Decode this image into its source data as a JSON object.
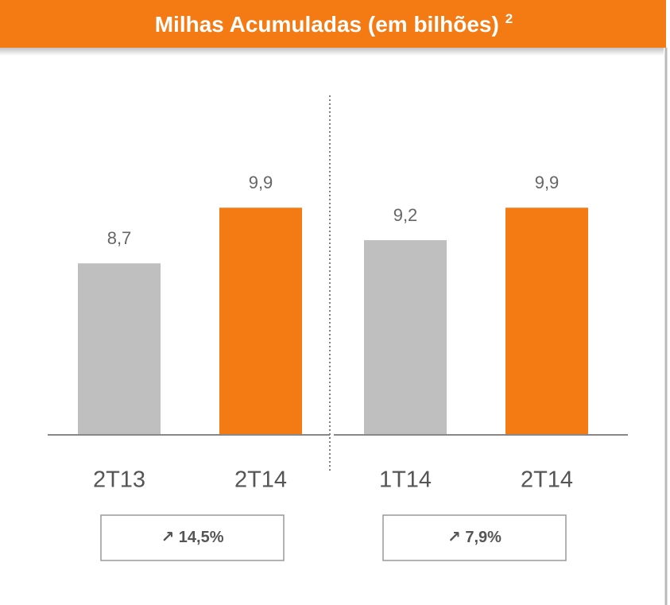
{
  "header": {
    "title": "Milhas Acumuladas (em bilhões)",
    "footnote": "2"
  },
  "chart_data": [
    {
      "type": "bar",
      "categories": [
        "2T13",
        "2T14"
      ],
      "values": [
        8.7,
        9.9
      ],
      "value_labels": [
        "8,7",
        "9,9"
      ],
      "colors": [
        "#bfbfbf",
        "#f47a14"
      ],
      "ylim": [
        5,
        12.7
      ],
      "annotation": "14,5%"
    },
    {
      "type": "bar",
      "categories": [
        "1T14",
        "2T14"
      ],
      "values": [
        9.2,
        9.9
      ],
      "value_labels": [
        "9,2",
        "9,9"
      ],
      "colors": [
        "#bfbfbf",
        "#f47a14"
      ],
      "ylim": [
        5,
        12.7
      ],
      "annotation": "7,9%"
    }
  ]
}
